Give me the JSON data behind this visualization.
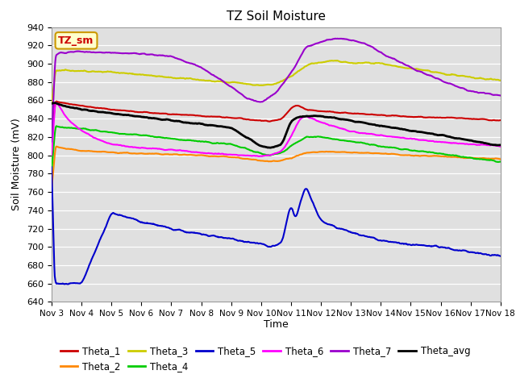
{
  "title": "TZ Soil Moisture",
  "ylabel": "Soil Moisture (mV)",
  "xlabel": "Time",
  "ylim": [
    640,
    940
  ],
  "yticks": [
    640,
    660,
    680,
    700,
    720,
    740,
    760,
    780,
    800,
    820,
    840,
    860,
    880,
    900,
    920,
    940
  ],
  "bg_color": "#e0e0e0",
  "legend_label": "TZ_sm",
  "legend_bg": "#ffffcc",
  "legend_border": "#cc9900",
  "series_colors": {
    "Theta_1": "#cc0000",
    "Theta_2": "#ff8800",
    "Theta_3": "#cccc00",
    "Theta_4": "#00cc00",
    "Theta_5": "#0000cc",
    "Theta_6": "#ff00ff",
    "Theta_7": "#9900cc",
    "Theta_avg": "#000000"
  },
  "x_start": 3,
  "x_end": 18,
  "x_labels": [
    "Nov 3",
    "Nov 4",
    "Nov 5",
    "Nov 6",
    "Nov 7",
    "Nov 8",
    "Nov 9",
    "Nov 10",
    "Nov 11",
    "Nov 12",
    "Nov 13",
    "Nov 14",
    "Nov 15",
    "Nov 16",
    "Nov 17",
    "Nov 18"
  ],
  "x_tick_positions": [
    3,
    4,
    5,
    6,
    7,
    8,
    9,
    10,
    11,
    12,
    13,
    14,
    15,
    16,
    17,
    18
  ]
}
